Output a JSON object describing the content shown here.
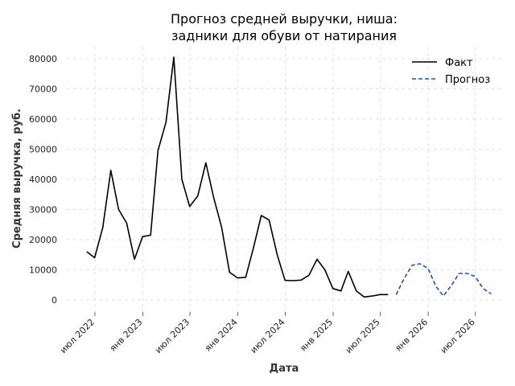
{
  "chart_data": {
    "type": "line",
    "title_lines": [
      "Прогноз средней выручки, ниша:",
      "задники для обуви от натирания"
    ],
    "xlabel": "Дата",
    "ylabel": "Средняя выручка, руб.",
    "x_range": [
      "2022-03-15",
      "2026-10-15"
    ],
    "ylim": [
      -4000,
      84000
    ],
    "yticks": [
      0,
      10000,
      20000,
      30000,
      40000,
      50000,
      60000,
      70000,
      80000
    ],
    "xticks": [
      {
        "date": "2022-07-01",
        "label": "июл 2022"
      },
      {
        "date": "2023-01-01",
        "label": "янв 2023"
      },
      {
        "date": "2023-07-01",
        "label": "июл 2023"
      },
      {
        "date": "2024-01-01",
        "label": "янв 2024"
      },
      {
        "date": "2024-07-01",
        "label": "июл 2024"
      },
      {
        "date": "2025-01-01",
        "label": "янв 2025"
      },
      {
        "date": "2025-07-01",
        "label": "июл 2025"
      },
      {
        "date": "2026-01-01",
        "label": "янв 2026"
      },
      {
        "date": "2026-07-01",
        "label": "июл 2026"
      }
    ],
    "grid": true,
    "legend_position": "top-right",
    "series": [
      {
        "name": "Факт",
        "color": "#000000",
        "style": "solid",
        "x": [
          "2022-05-31",
          "2022-06-30",
          "2022-07-31",
          "2022-08-31",
          "2022-09-30",
          "2022-10-31",
          "2022-11-30",
          "2022-12-31",
          "2023-01-31",
          "2023-02-28",
          "2023-03-31",
          "2023-04-30",
          "2023-05-31",
          "2023-06-30",
          "2023-07-31",
          "2023-08-31",
          "2023-09-30",
          "2023-10-31",
          "2023-11-30",
          "2023-12-31",
          "2024-01-31",
          "2024-02-29",
          "2024-03-31",
          "2024-04-30",
          "2024-05-31",
          "2024-06-30",
          "2024-07-31",
          "2024-08-31",
          "2024-09-30",
          "2024-10-31",
          "2024-11-30",
          "2024-12-31",
          "2025-01-31",
          "2025-02-28",
          "2025-03-31",
          "2025-04-30",
          "2025-05-31",
          "2025-06-30",
          "2025-07-31",
          "2025-08-31"
        ],
        "y": [
          16000,
          14000,
          24000,
          43000,
          30000,
          25500,
          13500,
          21000,
          21500,
          49500,
          59000,
          80500,
          40000,
          31000,
          34500,
          45500,
          34000,
          24000,
          9200,
          7300,
          7500,
          17000,
          28000,
          26500,
          15000,
          6500,
          6400,
          6600,
          8200,
          13500,
          10000,
          3800,
          3000,
          9500,
          3000,
          1000,
          1300,
          1800,
          1800,
          null
        ]
      },
      {
        "name": "Прогноз",
        "color": "#1f4fbf",
        "style": "dashed",
        "x": [
          "2025-08-31",
          "2025-09-30",
          "2025-10-31",
          "2025-11-30",
          "2025-12-31",
          "2026-01-31",
          "2026-02-28",
          "2026-03-31",
          "2026-04-30",
          "2026-05-31",
          "2026-06-30",
          "2026-07-31",
          "2026-08-31"
        ],
        "y": [
          1800,
          7000,
          11500,
          12000,
          10500,
          4500,
          1300,
          4800,
          8800,
          8800,
          7800,
          3800,
          2000
        ]
      }
    ]
  }
}
